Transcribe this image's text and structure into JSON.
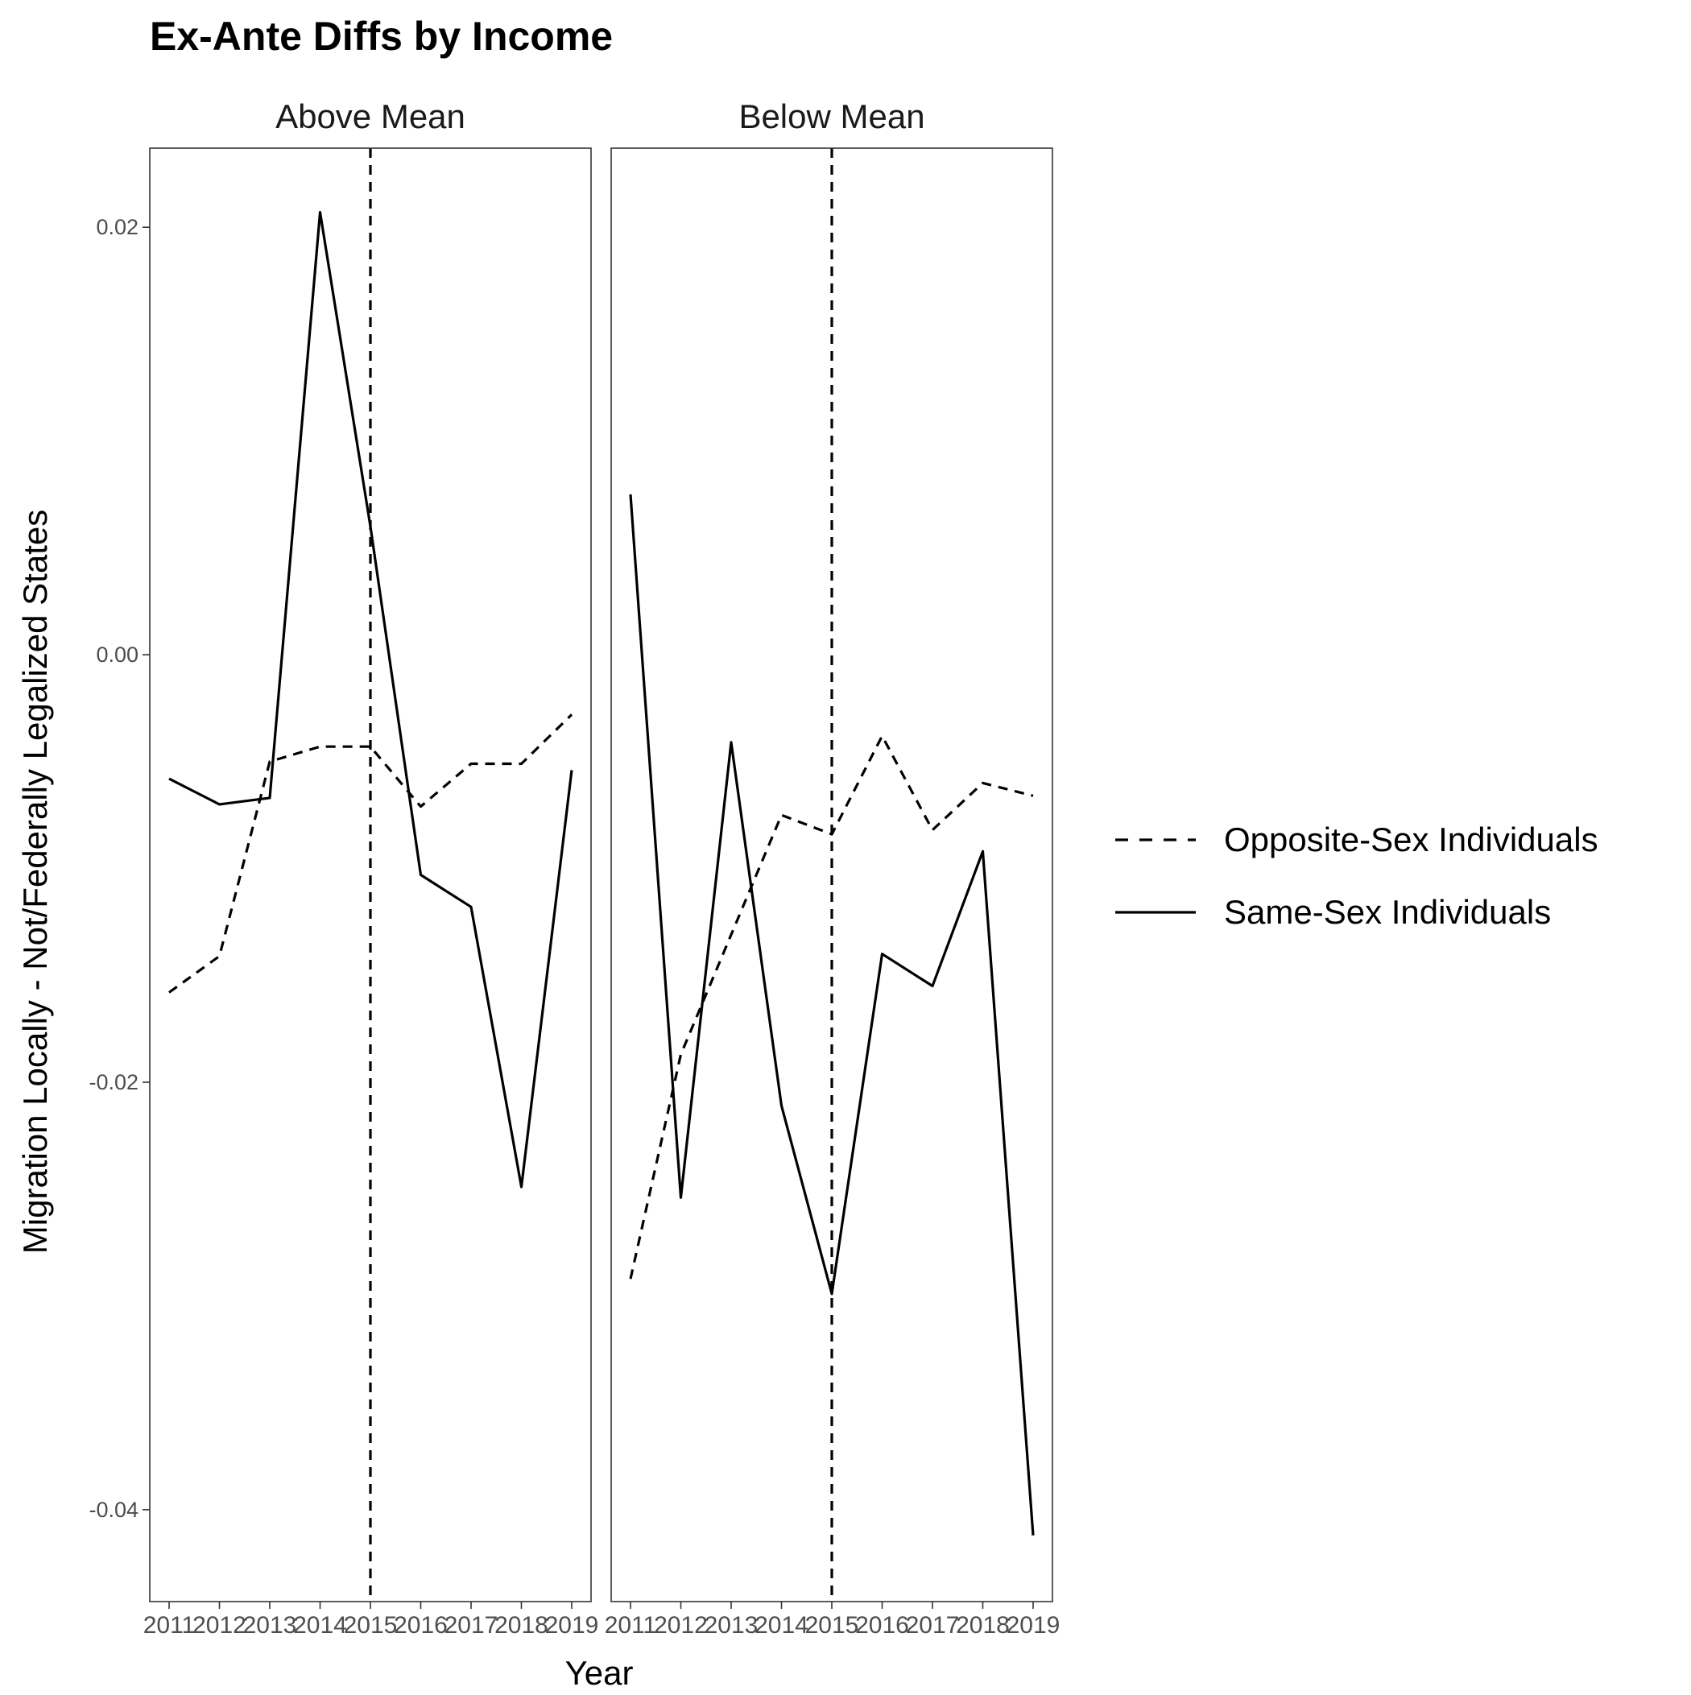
{
  "chart_data": {
    "type": "line",
    "title": "Ex-Ante Diffs by Income",
    "xlabel": "Year",
    "ylabel": "Migration Locally - Not/Federally Legalized States",
    "x": [
      "2011",
      "2012",
      "2013",
      "2014",
      "2015",
      "2016",
      "2017",
      "2018",
      "2019"
    ],
    "ylim": [
      -0.0443,
      0.0237
    ],
    "yticks": [
      0.02,
      0.0,
      -0.02,
      -0.04
    ],
    "ytick_labels": [
      "0.02",
      "0.00",
      "-0.02",
      "-0.04"
    ],
    "vline_x": "2015",
    "grid": false,
    "legend_position": "right",
    "series_names": [
      "Opposite-Sex Individuals",
      "Same-Sex Individuals"
    ],
    "series_styles": [
      "dashed",
      "solid"
    ],
    "panels": [
      {
        "name": "Above Mean",
        "series": [
          {
            "name": "Opposite-Sex Individuals",
            "style": "dashed",
            "values": [
              -0.0158,
              -0.0141,
              -0.005,
              -0.0043,
              -0.0043,
              -0.0071,
              -0.0051,
              -0.0051,
              -0.0028
            ]
          },
          {
            "name": "Same-Sex Individuals",
            "style": "solid",
            "values": [
              -0.0058,
              -0.007,
              -0.0067,
              0.0207,
              0.006,
              -0.0103,
              -0.0118,
              -0.0249,
              -0.0054
            ]
          }
        ]
      },
      {
        "name": "Below Mean",
        "series": [
          {
            "name": "Opposite-Sex Individuals",
            "style": "dashed",
            "values": [
              -0.0292,
              -0.0187,
              -0.0131,
              -0.0075,
              -0.0084,
              -0.0038,
              -0.0082,
              -0.006,
              -0.0066
            ]
          },
          {
            "name": "Same-Sex Individuals",
            "style": "solid",
            "values": [
              0.0075,
              -0.0254,
              -0.0041,
              -0.0211,
              -0.0299,
              -0.014,
              -0.0155,
              -0.0092,
              -0.0412
            ]
          }
        ]
      }
    ]
  },
  "colors": {
    "line": "#000000",
    "panel_border": "#333333",
    "text": "#000000",
    "tick_text": "#4d4d4d"
  }
}
